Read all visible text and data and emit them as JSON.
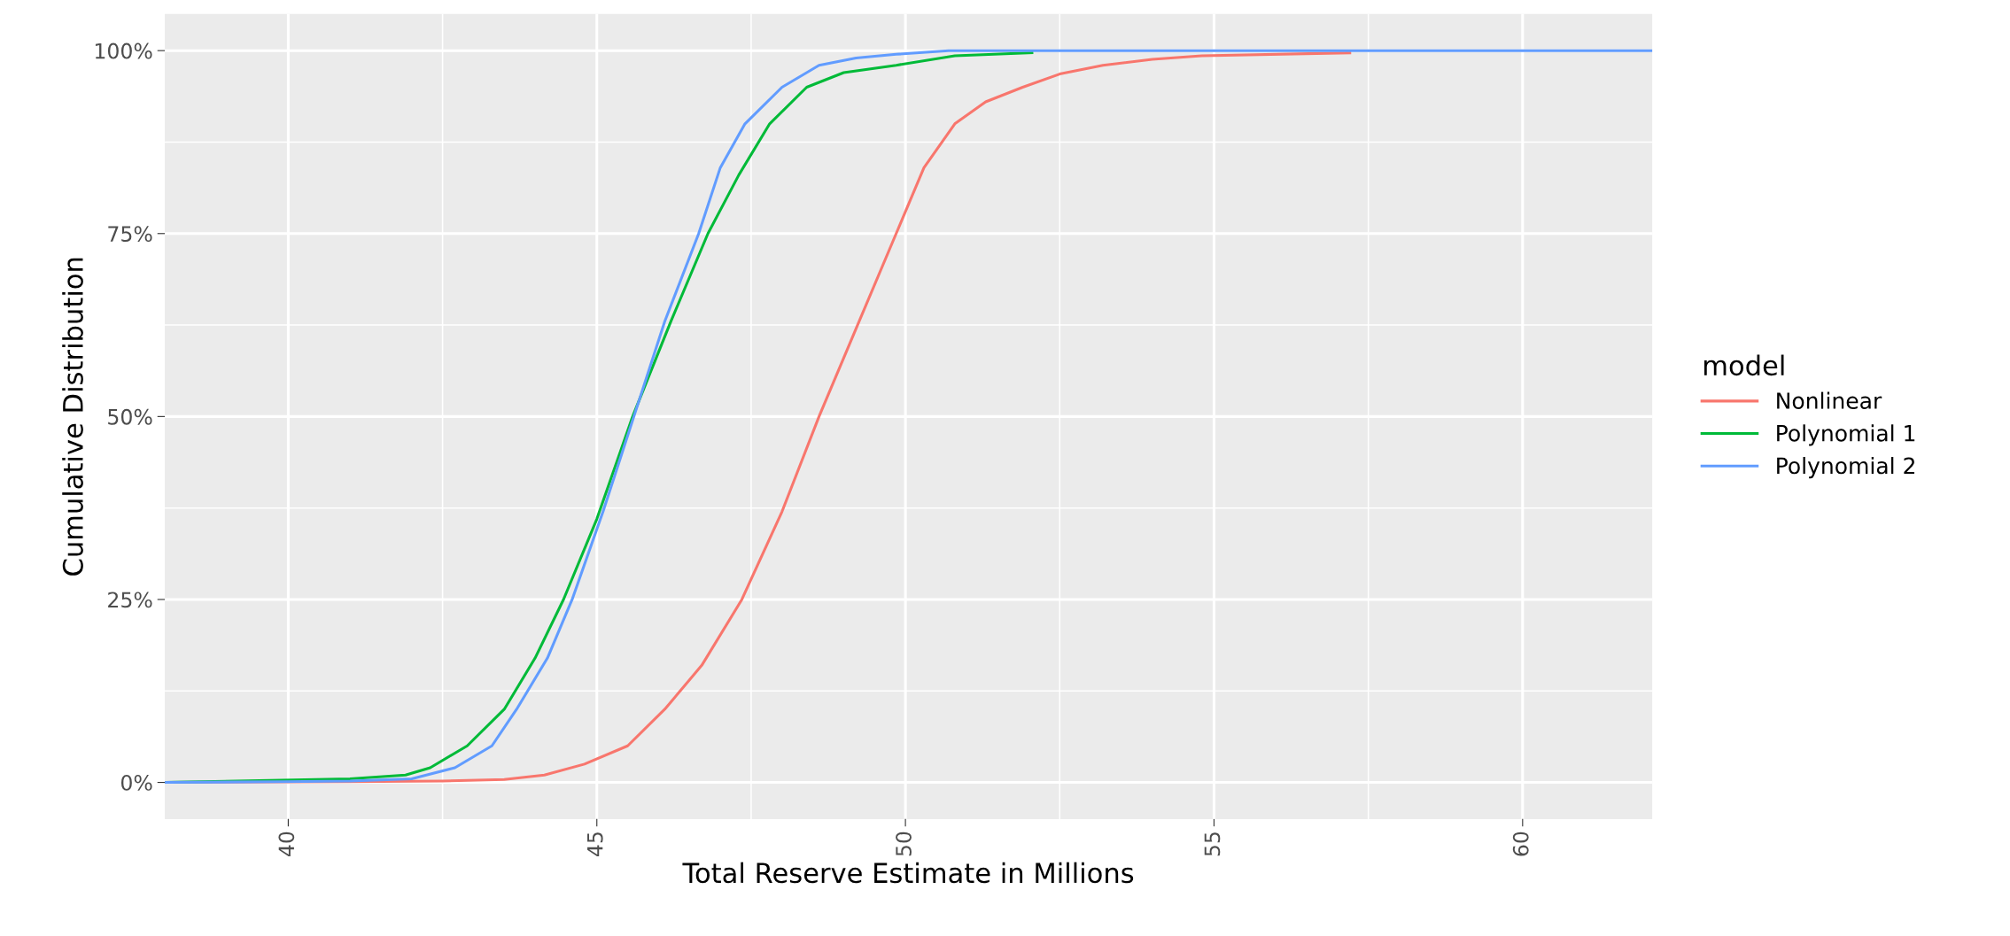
{
  "chart_data": {
    "type": "line",
    "xlabel": "Total Reserve Estimate in Millions",
    "ylabel": "Cumulative Distribution",
    "legend_title": "model",
    "legend": "right",
    "grid": true,
    "line_style": "solid",
    "marker": "none",
    "xlim": [
      38.0,
      62.1
    ],
    "ylim": [
      -5,
      105
    ],
    "xticks": [
      40,
      {
        "value": 42.5,
        "label": null
      },
      45,
      {
        "value": 47.5,
        "label": null
      },
      50,
      {
        "value": 52.5,
        "label": null
      },
      55,
      {
        "value": 57.5,
        "label": null
      },
      60
    ],
    "yticks": [
      {
        "value": 0,
        "label": "0%"
      },
      {
        "value": 12.5,
        "label": null
      },
      {
        "value": 25,
        "label": "25%"
      },
      {
        "value": 37.5,
        "label": null
      },
      {
        "value": 50,
        "label": "50%"
      },
      {
        "value": 62.5,
        "label": null
      },
      {
        "value": 75,
        "label": "75%"
      },
      {
        "value": 87.5,
        "label": null
      },
      {
        "value": 100,
        "label": "100%"
      }
    ],
    "series": [
      {
        "name": "Nonlinear",
        "color": "#f8766d",
        "x": [
          38.0,
          41.0,
          42.5,
          43.5,
          44.15,
          44.8,
          45.5,
          46.1,
          46.7,
          47.35,
          48.0,
          48.6,
          49.2,
          49.85,
          50.3,
          50.8,
          51.3,
          51.9,
          52.5,
          53.2,
          54.0,
          54.8,
          57.2
        ],
        "values": [
          0,
          0.1,
          0.2,
          0.4,
          1,
          2.5,
          5,
          10,
          16,
          25,
          37,
          50,
          62,
          75,
          84,
          90,
          93,
          95,
          96.8,
          98,
          98.8,
          99.3,
          99.7
        ]
      },
      {
        "name": "Polynomial 1",
        "color": "#00ba38",
        "x": [
          38.0,
          39.9,
          41.0,
          41.9,
          42.3,
          42.9,
          43.5,
          44.0,
          44.46,
          45.0,
          45.58,
          46.2,
          46.8,
          47.3,
          47.8,
          48.4,
          49.0,
          49.85,
          50.8,
          52.05
        ],
        "values": [
          0,
          0.3,
          0.5,
          1,
          2,
          5,
          10,
          17,
          25,
          36,
          50,
          63,
          75,
          83,
          90,
          95,
          97,
          98,
          99.3,
          99.7
        ]
      },
      {
        "name": "Polynomial 2",
        "color": "#619cff",
        "x": [
          38.0,
          39.9,
          41.0,
          42.0,
          42.7,
          43.3,
          43.7,
          44.2,
          44.6,
          45.1,
          45.6,
          46.1,
          46.65,
          47.0,
          47.4,
          48.0,
          48.6,
          49.2,
          49.85,
          50.7,
          62.1
        ],
        "values": [
          0,
          0.1,
          0.2,
          0.5,
          2,
          5,
          10,
          17,
          25,
          37,
          50,
          63,
          75,
          84,
          90,
          95,
          98,
          99,
          99.5,
          100,
          100
        ]
      }
    ]
  }
}
